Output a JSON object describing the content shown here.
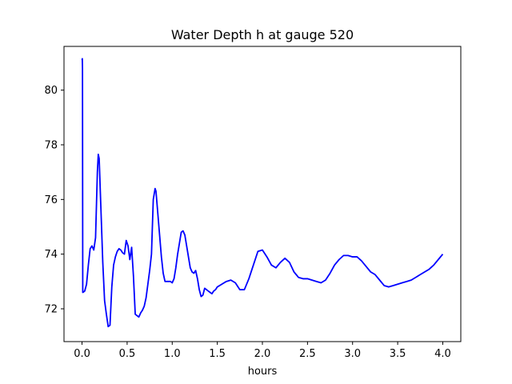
{
  "chart_data": {
    "type": "line",
    "title": "Water Depth h at gauge 520",
    "xlabel": "hours",
    "ylabel": "",
    "xlim": [
      -0.2,
      4.2
    ],
    "ylim": [
      70.8,
      81.6
    ],
    "xticks": [
      0.0,
      0.5,
      1.0,
      1.5,
      2.0,
      2.5,
      3.0,
      3.5,
      4.0
    ],
    "xtick_labels": [
      "0.0",
      "0.5",
      "1.0",
      "1.5",
      "2.0",
      "2.5",
      "3.0",
      "3.5",
      "4.0"
    ],
    "yticks": [
      72,
      74,
      76,
      78,
      80
    ],
    "ytick_labels": [
      "72",
      "74",
      "76",
      "78",
      "80"
    ],
    "grid": false,
    "series": [
      {
        "color": "#0000ff",
        "x": [
          0.0,
          0.003,
          0.005,
          0.008,
          0.01,
          0.03,
          0.05,
          0.07,
          0.09,
          0.11,
          0.13,
          0.15,
          0.17,
          0.18,
          0.19,
          0.21,
          0.23,
          0.25,
          0.27,
          0.29,
          0.31,
          0.33,
          0.35,
          0.37,
          0.39,
          0.41,
          0.43,
          0.45,
          0.47,
          0.49,
          0.51,
          0.53,
          0.55,
          0.57,
          0.59,
          0.61,
          0.63,
          0.65,
          0.67,
          0.69,
          0.71,
          0.73,
          0.75,
          0.77,
          0.79,
          0.81,
          0.82,
          0.83,
          0.84,
          0.86,
          0.88,
          0.9,
          0.92,
          0.94,
          0.96,
          0.98,
          1.0,
          1.02,
          1.04,
          1.06,
          1.08,
          1.1,
          1.12,
          1.14,
          1.16,
          1.18,
          1.2,
          1.22,
          1.24,
          1.26,
          1.28,
          1.3,
          1.32,
          1.34,
          1.36,
          1.38,
          1.4,
          1.42,
          1.44,
          1.46,
          1.48,
          1.5,
          1.55,
          1.6,
          1.65,
          1.7,
          1.75,
          1.8,
          1.85,
          1.9,
          1.95,
          2.0,
          2.05,
          2.1,
          2.15,
          2.2,
          2.25,
          2.3,
          2.35,
          2.4,
          2.45,
          2.5,
          2.55,
          2.6,
          2.65,
          2.7,
          2.75,
          2.8,
          2.85,
          2.9,
          2.95,
          3.0,
          3.05,
          3.1,
          3.15,
          3.2,
          3.25,
          3.3,
          3.35,
          3.4,
          3.45,
          3.5,
          3.55,
          3.6,
          3.65,
          3.7,
          3.75,
          3.8,
          3.85,
          3.9,
          3.95,
          4.0
        ],
        "y": [
          81.1,
          81.15,
          80.8,
          72.6,
          72.6,
          72.65,
          72.9,
          73.6,
          74.2,
          74.3,
          74.15,
          74.6,
          77.0,
          77.65,
          77.5,
          75.6,
          73.7,
          72.3,
          71.8,
          71.35,
          71.4,
          72.8,
          73.6,
          73.9,
          74.1,
          74.2,
          74.15,
          74.05,
          74.0,
          74.5,
          74.3,
          73.8,
          74.25,
          73.2,
          71.8,
          71.75,
          71.7,
          71.85,
          71.95,
          72.1,
          72.4,
          72.9,
          73.4,
          74.0,
          76.0,
          76.4,
          76.3,
          75.9,
          75.5,
          74.7,
          73.9,
          73.3,
          73.0,
          73.0,
          73.0,
          73.0,
          72.95,
          73.1,
          73.5,
          74.0,
          74.4,
          74.8,
          74.85,
          74.7,
          74.3,
          73.9,
          73.5,
          73.35,
          73.3,
          73.4,
          73.1,
          72.7,
          72.45,
          72.5,
          72.75,
          72.7,
          72.65,
          72.6,
          72.55,
          72.65,
          72.7,
          72.8,
          72.9,
          73.0,
          73.05,
          72.95,
          72.7,
          72.7,
          73.1,
          73.6,
          74.1,
          74.15,
          73.9,
          73.6,
          73.5,
          73.7,
          73.85,
          73.7,
          73.35,
          73.15,
          73.1,
          73.1,
          73.05,
          73.0,
          72.95,
          73.05,
          73.3,
          73.6,
          73.8,
          73.95,
          73.95,
          73.9,
          73.9,
          73.75,
          73.55,
          73.35,
          73.25,
          73.05,
          72.85,
          72.8,
          72.85,
          72.9,
          72.95,
          73.0,
          73.05,
          73.15,
          73.25,
          73.35,
          73.45,
          73.6,
          73.8,
          74.0
        ]
      }
    ]
  }
}
